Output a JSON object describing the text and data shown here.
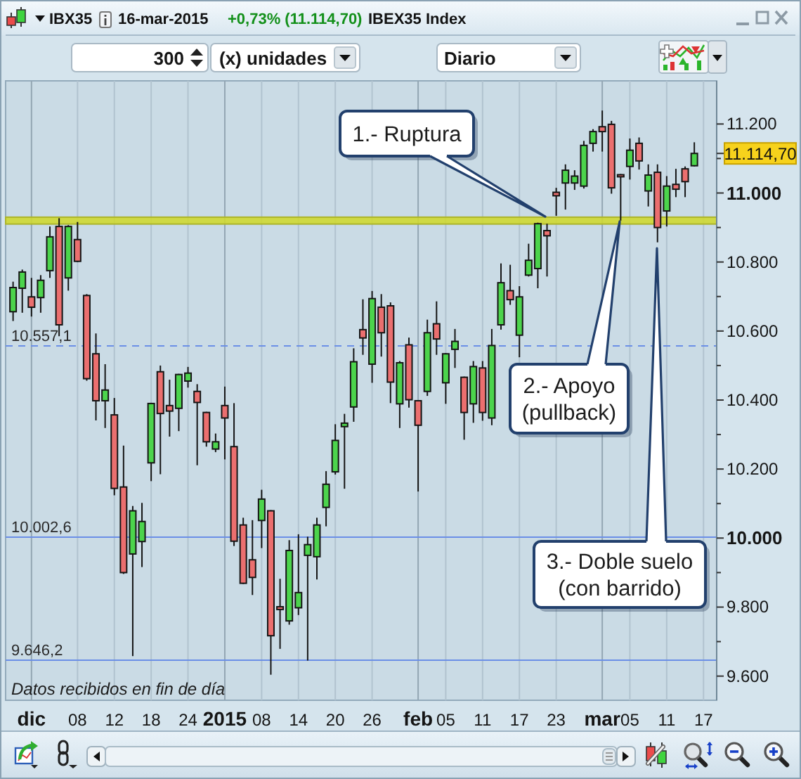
{
  "chart_data": {
    "type": "candlestick",
    "title": "IBX35",
    "subtitle": "IBEX35 Index",
    "categories": [
      null,
      null,
      "dic",
      null,
      null,
      null,
      null,
      "08",
      null,
      null,
      null,
      "12",
      null,
      null,
      null,
      "18",
      null,
      null,
      null,
      "24",
      null,
      null,
      null,
      "2015",
      null,
      null,
      null,
      "08",
      null,
      null,
      null,
      "14",
      null,
      null,
      null,
      "20",
      null,
      null,
      null,
      "26",
      null,
      null,
      null,
      null,
      "feb",
      null,
      null,
      "05",
      null,
      null,
      null,
      "11",
      null,
      null,
      null,
      "17",
      null,
      null,
      null,
      "23",
      null,
      null,
      null,
      null,
      "mar",
      null,
      null,
      "05",
      null,
      null,
      null,
      "11",
      null,
      null,
      null,
      "17"
    ],
    "ohlc": [
      [
        10656,
        10743,
        10629,
        10726
      ],
      [
        10724,
        10778,
        10653,
        10771
      ],
      [
        10699,
        10754,
        10642,
        10669
      ],
      [
        10697,
        10762,
        10653,
        10747
      ],
      [
        10775,
        10903,
        10754,
        10873
      ],
      [
        10903,
        10927,
        10585,
        10618
      ],
      [
        10754,
        10907,
        10717,
        10903
      ],
      [
        10865,
        10916,
        10800,
        10802
      ],
      [
        10703,
        10707,
        10456,
        10462
      ],
      [
        10534,
        10593,
        10341,
        10398
      ],
      [
        10398,
        10504,
        10319,
        10429
      ],
      [
        10357,
        10406,
        10124,
        10144
      ],
      [
        10148,
        10268,
        9896,
        9900
      ],
      [
        9954,
        10093,
        9658,
        10079
      ],
      [
        9990,
        10102,
        9916,
        10048
      ],
      [
        10218,
        10392,
        10165,
        10390
      ],
      [
        10482,
        10500,
        10185,
        10361
      ],
      [
        10384,
        10459,
        10294,
        10368
      ],
      [
        10376,
        10476,
        10310,
        10474
      ],
      [
        10455,
        10496,
        10436,
        10478
      ],
      [
        10425,
        10446,
        10211,
        10393
      ],
      [
        10364,
        10366,
        10265,
        10279
      ],
      [
        10258,
        10303,
        10249,
        10279
      ],
      [
        10384,
        10439,
        10228,
        10348
      ],
      [
        10265,
        10391,
        9977,
        9991
      ],
      [
        10038,
        10059,
        9867,
        9869
      ],
      [
        9937,
        10052,
        9835,
        9886
      ],
      [
        10051,
        10140,
        9971,
        10113
      ],
      [
        10079,
        10081,
        9604,
        9717
      ],
      [
        9801,
        9882,
        9679,
        9793
      ],
      [
        9760,
        9994,
        9749,
        9964
      ],
      [
        9798,
        10011,
        9777,
        9842
      ],
      [
        9950,
        10004,
        9645,
        9981
      ],
      [
        9946,
        10059,
        9880,
        10038
      ],
      [
        10089,
        10194,
        10034,
        10156
      ],
      [
        10192,
        10330,
        10184,
        10283
      ],
      [
        10323,
        10360,
        10143,
        10333
      ],
      [
        10380,
        10550,
        10337,
        10511
      ],
      [
        10604,
        10692,
        10531,
        10580
      ],
      [
        10504,
        10716,
        10450,
        10694
      ],
      [
        10669,
        10707,
        10526,
        10595
      ],
      [
        10673,
        10683,
        10391,
        10452
      ],
      [
        10389,
        10513,
        10319,
        10508
      ],
      [
        10560,
        10581,
        10378,
        10401
      ],
      [
        10398,
        10400,
        10135,
        10327
      ],
      [
        10425,
        10633,
        10412,
        10595
      ],
      [
        10621,
        10686,
        10531,
        10577
      ],
      [
        10450,
        10536,
        10389,
        10534
      ],
      [
        10547,
        10606,
        10493,
        10570
      ],
      [
        10466,
        10468,
        10285,
        10364
      ],
      [
        10389,
        10513,
        10334,
        10497
      ],
      [
        10493,
        10513,
        10340,
        10364
      ],
      [
        10348,
        10606,
        10327,
        10558
      ],
      [
        10618,
        10796,
        10604,
        10740
      ],
      [
        10717,
        10792,
        10676,
        10691
      ],
      [
        10588,
        10730,
        10524,
        10699
      ],
      [
        10762,
        10853,
        10758,
        10805
      ],
      [
        10781,
        10914,
        10724,
        10911
      ],
      [
        10891,
        10911,
        10758,
        10876
      ],
      [
        11002,
        11015,
        10934,
        10992
      ],
      [
        11029,
        11083,
        10952,
        11066
      ],
      [
        11029,
        11066,
        11009,
        11049
      ],
      [
        11020,
        11151,
        11013,
        11138
      ],
      [
        11144,
        11185,
        11120,
        11178
      ],
      [
        11192,
        11239,
        11120,
        11178
      ],
      [
        11199,
        11209,
        10998,
        11015
      ],
      [
        11053,
        11055,
        10920,
        11047
      ],
      [
        11077,
        11158,
        11039,
        11124
      ],
      [
        11144,
        11161,
        11068,
        11093
      ],
      [
        11006,
        11083,
        10961,
        11052
      ],
      [
        11060,
        11083,
        10857,
        10900
      ],
      [
        10948,
        11049,
        10903,
        11020
      ],
      [
        11025,
        11070,
        10988,
        11011
      ],
      [
        11070,
        11077,
        10988,
        11033
      ],
      [
        11079,
        11147,
        11077,
        11114.7
      ],
      null
    ],
    "colors": [
      "#4cd44c",
      "#4cd44c",
      "#eb6f6f",
      "#4cd44c",
      "#4cd44c",
      "#eb6f6f",
      "#4cd44c",
      "#eb6f6f",
      "#eb6f6f",
      "#eb6f6f",
      "#4cd44c",
      "#eb6f6f",
      "#eb6f6f",
      "#4cd44c",
      "#4cd44c",
      "#4cd44c",
      "#eb6f6f",
      "#eb6f6f",
      "#4cd44c",
      "#4cd44c",
      "#eb6f6f",
      "#eb6f6f",
      "#4cd44c",
      "#eb6f6f",
      "#eb6f6f",
      "#eb6f6f",
      "#eb6f6f",
      "#4cd44c",
      "#eb6f6f",
      "#eb6f6f",
      "#4cd44c",
      "#4cd44c",
      "#4cd44c",
      "#4cd44c",
      "#4cd44c",
      "#4cd44c",
      "#4cd44c",
      "#4cd44c",
      "#eb6f6f",
      "#4cd44c",
      "#eb6f6f",
      "#eb6f6f",
      "#4cd44c",
      "#eb6f6f",
      "#eb6f6f",
      "#4cd44c",
      "#eb6f6f",
      "#4cd44c",
      "#4cd44c",
      "#eb6f6f",
      "#4cd44c",
      "#eb6f6f",
      "#4cd44c",
      "#4cd44c",
      "#eb6f6f",
      "#4cd44c",
      "#4cd44c",
      "#4cd44c",
      "#eb6f6f",
      "#eb6f6f",
      "#4cd44c",
      "#4cd44c",
      "#4cd44c",
      "#4cd44c",
      "#eb6f6f",
      "#eb6f6f",
      "#eb6f6f",
      "#4cd44c",
      "#eb6f6f",
      "#4cd44c",
      "#eb6f6f",
      "#4cd44c",
      "#eb6f6f",
      "#eb6f6f",
      "#4cd44c",
      null
    ],
    "ylim": [
      9530,
      11325
    ],
    "yticks": [
      {
        "value": 9600,
        "label": "9.600"
      },
      {
        "value": 9700,
        "label": null
      },
      {
        "value": 9800,
        "label": "9.800"
      },
      {
        "value": 9900,
        "label": null
      },
      {
        "value": 10000,
        "label": "10.000"
      },
      {
        "value": 10100,
        "label": null
      },
      {
        "value": 10200,
        "label": "10.200"
      },
      {
        "value": 10300,
        "label": null
      },
      {
        "value": 10400,
        "label": "10.400"
      },
      {
        "value": 10500,
        "label": null
      },
      {
        "value": 10600,
        "label": "10.600"
      },
      {
        "value": 10700,
        "label": null
      },
      {
        "value": 10800,
        "label": "10.800"
      },
      {
        "value": 10900,
        "label": null
      },
      {
        "value": 11000,
        "label": "11.000"
      },
      {
        "value": 11100,
        "label": null
      },
      {
        "value": 11200,
        "label": "11.200"
      }
    ],
    "grid": "x",
    "ref_lines": [
      {
        "axis": "y",
        "value": 10557.1,
        "label": "10.557,1",
        "color": "#6b8fe6",
        "line_style": "dashed"
      },
      {
        "axis": "y",
        "value": 10002.6,
        "label": "10.002,6",
        "color": "#6b8fe6",
        "line_style": "solid"
      },
      {
        "axis": "y",
        "value": 9646.2,
        "label": "9.646,2",
        "color": "#6b8fe6",
        "line_style": "solid"
      }
    ],
    "bands": [
      {
        "axis": "y",
        "from": 10910,
        "to": 10930,
        "color": "#cfd832"
      }
    ],
    "annotations": [
      "16-mar-2015",
      "+0,73% (11.114,70)",
      "300",
      "(x) unidades",
      "Diario",
      "1.- Ruptura",
      "2.- Apoyo\n(pullback)",
      "3.- Doble suelo\n(con barrido)",
      "Datos recibidos en fin de día",
      "11.114,70"
    ]
  }
}
